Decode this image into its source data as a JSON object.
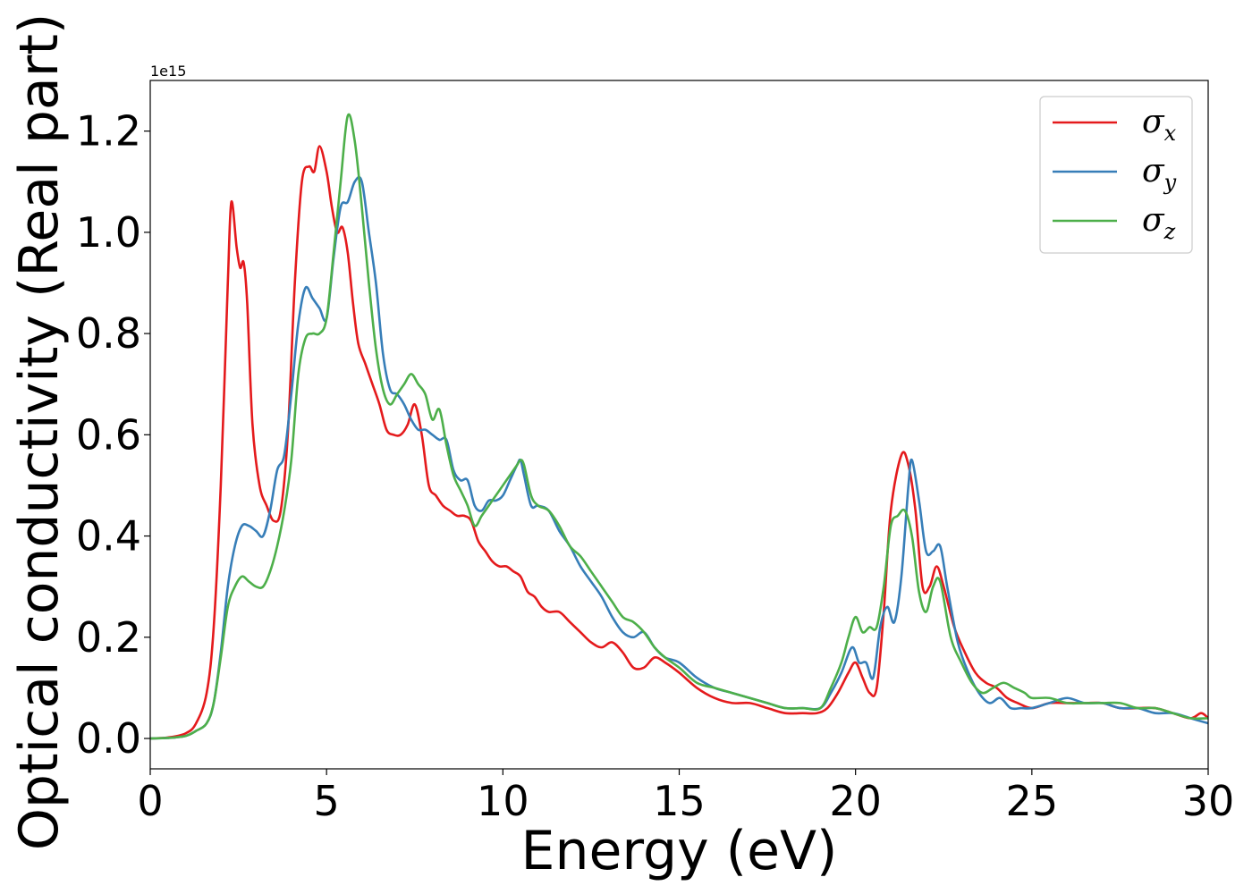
{
  "chart_data": {
    "type": "line",
    "xlabel": "Energy (eV)",
    "ylabel": "Optical conductivity (Real part)",
    "y_offset_label": "1e15",
    "xlim": [
      0,
      30
    ],
    "ylim": [
      -0.06,
      1.3
    ],
    "y_scale_exponent": 15,
    "xticks": [
      0,
      5,
      10,
      15,
      20,
      25,
      30
    ],
    "xtick_labels": [
      "0",
      "5",
      "10",
      "15",
      "20",
      "25",
      "30"
    ],
    "yticks": [
      0.0,
      0.2,
      0.4,
      0.6,
      0.8,
      1.0,
      1.2
    ],
    "ytick_labels": [
      "0.0",
      "0.2",
      "0.4",
      "0.6",
      "0.8",
      "1.0",
      "1.2"
    ],
    "grid": false,
    "legend_position": "top-right",
    "series": [
      {
        "name": "σx",
        "legend_base": "σ",
        "legend_sub": "x",
        "color": "#e41a1c",
        "x": [
          0,
          0.5,
          1,
          1.3,
          1.6,
          1.8,
          2.0,
          2.2,
          2.3,
          2.45,
          2.55,
          2.65,
          2.75,
          2.9,
          3.1,
          3.3,
          3.5,
          3.7,
          3.9,
          4.1,
          4.3,
          4.5,
          4.65,
          4.8,
          5.0,
          5.15,
          5.3,
          5.45,
          5.6,
          5.75,
          5.9,
          6.1,
          6.3,
          6.5,
          6.7,
          6.9,
          7.1,
          7.3,
          7.5,
          7.7,
          7.9,
          8.1,
          8.3,
          8.5,
          8.7,
          8.9,
          9.1,
          9.3,
          9.5,
          9.7,
          9.9,
          10.1,
          10.3,
          10.5,
          10.7,
          10.9,
          11.1,
          11.3,
          11.6,
          11.9,
          12.2,
          12.5,
          12.8,
          13.1,
          13.4,
          13.7,
          14.0,
          14.3,
          14.6,
          15.0,
          15.5,
          16.0,
          16.5,
          17.0,
          17.5,
          18.0,
          18.5,
          18.9,
          19.2,
          19.5,
          19.8,
          20.0,
          20.2,
          20.4,
          20.6,
          20.8,
          21.0,
          21.3,
          21.5,
          21.7,
          21.9,
          22.1,
          22.3,
          22.5,
          22.8,
          23.1,
          23.4,
          23.7,
          24.0,
          24.3,
          24.6,
          25.0,
          25.5,
          26.0,
          26.5,
          27.0,
          27.5,
          28.0,
          28.5,
          29.0,
          29.5,
          29.8,
          30.0
        ],
        "y": [
          0.0,
          0.002,
          0.01,
          0.03,
          0.09,
          0.22,
          0.5,
          0.9,
          1.06,
          0.97,
          0.93,
          0.94,
          0.86,
          0.62,
          0.5,
          0.46,
          0.43,
          0.45,
          0.6,
          0.9,
          1.1,
          1.13,
          1.12,
          1.17,
          1.12,
          1.05,
          1.0,
          1.01,
          0.96,
          0.86,
          0.78,
          0.74,
          0.7,
          0.66,
          0.61,
          0.6,
          0.6,
          0.62,
          0.66,
          0.6,
          0.5,
          0.48,
          0.46,
          0.45,
          0.44,
          0.44,
          0.43,
          0.39,
          0.37,
          0.35,
          0.34,
          0.34,
          0.33,
          0.32,
          0.29,
          0.28,
          0.26,
          0.25,
          0.25,
          0.23,
          0.21,
          0.19,
          0.18,
          0.19,
          0.17,
          0.14,
          0.14,
          0.16,
          0.15,
          0.13,
          0.1,
          0.08,
          0.07,
          0.07,
          0.06,
          0.05,
          0.05,
          0.05,
          0.06,
          0.09,
          0.13,
          0.15,
          0.12,
          0.09,
          0.1,
          0.25,
          0.45,
          0.56,
          0.54,
          0.45,
          0.3,
          0.3,
          0.34,
          0.3,
          0.22,
          0.17,
          0.13,
          0.11,
          0.1,
          0.08,
          0.07,
          0.06,
          0.07,
          0.07,
          0.07,
          0.07,
          0.06,
          0.06,
          0.06,
          0.05,
          0.04,
          0.05,
          0.04
        ]
      },
      {
        "name": "σy",
        "legend_base": "σ",
        "legend_sub": "y",
        "color": "#377eb8",
        "x": [
          0,
          0.5,
          1,
          1.3,
          1.6,
          1.8,
          2.0,
          2.2,
          2.4,
          2.6,
          2.8,
          3.0,
          3.2,
          3.4,
          3.6,
          3.8,
          4.0,
          4.2,
          4.4,
          4.6,
          4.8,
          5.0,
          5.2,
          5.4,
          5.6,
          5.8,
          6.0,
          6.2,
          6.4,
          6.6,
          6.8,
          7.0,
          7.2,
          7.4,
          7.6,
          7.8,
          8.0,
          8.2,
          8.4,
          8.6,
          8.8,
          9.0,
          9.2,
          9.4,
          9.6,
          9.8,
          10.0,
          10.2,
          10.4,
          10.5,
          10.6,
          10.8,
          11.0,
          11.3,
          11.6,
          11.9,
          12.2,
          12.5,
          12.8,
          13.1,
          13.4,
          13.7,
          14.0,
          14.3,
          14.6,
          15.0,
          15.5,
          16.0,
          16.5,
          17.0,
          17.5,
          18.0,
          18.5,
          19.0,
          19.3,
          19.6,
          19.9,
          20.1,
          20.3,
          20.5,
          20.7,
          20.9,
          21.1,
          21.3,
          21.5,
          21.6,
          21.8,
          22.0,
          22.2,
          22.4,
          22.6,
          22.9,
          23.2,
          23.5,
          23.8,
          24.1,
          24.4,
          24.7,
          25.0,
          25.5,
          26.0,
          26.5,
          27.0,
          27.5,
          28.0,
          28.5,
          29.0,
          29.5,
          30.0
        ],
        "y": [
          0.0,
          0.001,
          0.005,
          0.015,
          0.03,
          0.07,
          0.17,
          0.3,
          0.38,
          0.42,
          0.42,
          0.41,
          0.4,
          0.45,
          0.53,
          0.56,
          0.68,
          0.82,
          0.89,
          0.87,
          0.85,
          0.83,
          0.95,
          1.05,
          1.06,
          1.1,
          1.1,
          1.0,
          0.9,
          0.76,
          0.69,
          0.68,
          0.66,
          0.63,
          0.61,
          0.61,
          0.6,
          0.59,
          0.59,
          0.53,
          0.51,
          0.51,
          0.46,
          0.45,
          0.47,
          0.47,
          0.48,
          0.51,
          0.54,
          0.55,
          0.52,
          0.46,
          0.46,
          0.45,
          0.41,
          0.38,
          0.34,
          0.31,
          0.28,
          0.24,
          0.21,
          0.2,
          0.21,
          0.18,
          0.16,
          0.15,
          0.12,
          0.1,
          0.09,
          0.08,
          0.07,
          0.06,
          0.06,
          0.06,
          0.09,
          0.13,
          0.18,
          0.15,
          0.15,
          0.12,
          0.22,
          0.26,
          0.23,
          0.32,
          0.5,
          0.55,
          0.47,
          0.37,
          0.37,
          0.38,
          0.3,
          0.19,
          0.13,
          0.09,
          0.07,
          0.08,
          0.06,
          0.06,
          0.06,
          0.07,
          0.08,
          0.07,
          0.07,
          0.06,
          0.06,
          0.05,
          0.05,
          0.04,
          0.03
        ]
      },
      {
        "name": "σz",
        "legend_base": "σ",
        "legend_sub": "z",
        "color": "#4daf4a",
        "x": [
          0,
          0.5,
          1,
          1.3,
          1.6,
          1.8,
          2.0,
          2.2,
          2.4,
          2.6,
          2.8,
          3.0,
          3.2,
          3.4,
          3.6,
          3.8,
          4.0,
          4.2,
          4.4,
          4.6,
          4.8,
          5.0,
          5.2,
          5.4,
          5.6,
          5.8,
          6.0,
          6.2,
          6.4,
          6.6,
          6.8,
          7.0,
          7.2,
          7.4,
          7.6,
          7.8,
          8.0,
          8.2,
          8.4,
          8.6,
          8.8,
          9.0,
          9.2,
          9.4,
          9.6,
          9.8,
          10.0,
          10.2,
          10.4,
          10.5,
          10.6,
          10.8,
          11.0,
          11.3,
          11.6,
          11.9,
          12.2,
          12.5,
          12.8,
          13.1,
          13.4,
          13.7,
          14.0,
          14.3,
          14.6,
          15.0,
          15.5,
          16.0,
          16.5,
          17.0,
          17.5,
          18.0,
          18.5,
          19.0,
          19.3,
          19.6,
          19.8,
          20.0,
          20.2,
          20.4,
          20.6,
          20.8,
          21.0,
          21.2,
          21.4,
          21.6,
          21.8,
          22.0,
          22.2,
          22.4,
          22.7,
          23.0,
          23.3,
          23.6,
          23.9,
          24.2,
          24.5,
          24.8,
          25.0,
          25.5,
          26.0,
          26.5,
          27.0,
          27.5,
          28.0,
          28.5,
          29.0,
          29.5,
          30.0
        ],
        "y": [
          0.0,
          0.001,
          0.005,
          0.015,
          0.03,
          0.07,
          0.16,
          0.26,
          0.3,
          0.32,
          0.31,
          0.3,
          0.3,
          0.33,
          0.38,
          0.45,
          0.55,
          0.72,
          0.79,
          0.8,
          0.8,
          0.83,
          0.96,
          1.1,
          1.23,
          1.18,
          1.05,
          0.9,
          0.77,
          0.69,
          0.66,
          0.68,
          0.7,
          0.72,
          0.7,
          0.68,
          0.63,
          0.65,
          0.58,
          0.52,
          0.49,
          0.46,
          0.42,
          0.44,
          0.46,
          0.48,
          0.5,
          0.52,
          0.54,
          0.55,
          0.54,
          0.48,
          0.46,
          0.45,
          0.42,
          0.38,
          0.36,
          0.33,
          0.3,
          0.27,
          0.24,
          0.23,
          0.21,
          0.18,
          0.16,
          0.14,
          0.11,
          0.1,
          0.09,
          0.08,
          0.07,
          0.06,
          0.06,
          0.06,
          0.1,
          0.15,
          0.2,
          0.24,
          0.21,
          0.22,
          0.22,
          0.3,
          0.42,
          0.44,
          0.45,
          0.4,
          0.29,
          0.25,
          0.3,
          0.31,
          0.2,
          0.15,
          0.11,
          0.09,
          0.1,
          0.11,
          0.1,
          0.09,
          0.08,
          0.08,
          0.07,
          0.07,
          0.07,
          0.07,
          0.06,
          0.06,
          0.05,
          0.04,
          0.04
        ]
      }
    ]
  }
}
